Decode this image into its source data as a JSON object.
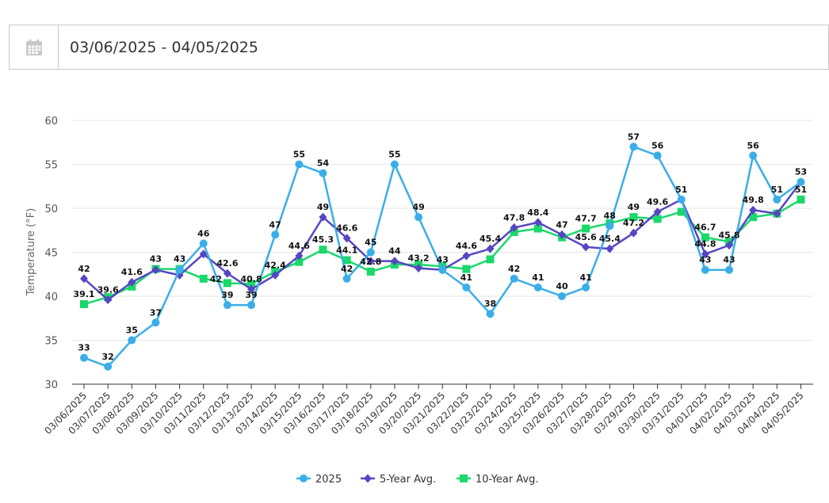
{
  "date_range": {
    "value": "03/06/2025 - 04/05/2025"
  },
  "colors": {
    "series_2025": "#3aaee8",
    "series_5yr": "#5646c2",
    "series_10yr": "#1ad86a",
    "grid": "#e6e6e6",
    "axis": "#333333"
  },
  "icons": {
    "calendar": "calendar-icon"
  },
  "chart_data": {
    "type": "line",
    "title": "",
    "xlabel": "",
    "ylabel": "Temperature (°F)",
    "ylim": [
      30,
      60
    ],
    "yticks": [
      30,
      35,
      40,
      45,
      50,
      55,
      60
    ],
    "grid": true,
    "legend_position": "bottom-center",
    "categories": [
      "03/06/2025",
      "03/07/2025",
      "03/08/2025",
      "03/09/2025",
      "03/10/2025",
      "03/11/2025",
      "03/12/2025",
      "03/13/2025",
      "03/14/2025",
      "03/15/2025",
      "03/16/2025",
      "03/17/2025",
      "03/18/2025",
      "03/19/2025",
      "03/20/2025",
      "03/21/2025",
      "03/22/2025",
      "03/23/2025",
      "03/24/2025",
      "03/25/2025",
      "03/26/2025",
      "03/27/2025",
      "03/28/2025",
      "03/29/2025",
      "03/30/2025",
      "03/31/2025",
      "04/01/2025",
      "04/02/2025",
      "04/03/2025",
      "04/04/2025",
      "04/05/2025"
    ],
    "series": [
      {
        "name": "2025",
        "marker": "circle",
        "color": "#3aaee8",
        "values": [
          33,
          32,
          35,
          37,
          43,
          46,
          39,
          39,
          47,
          55,
          54,
          42,
          45,
          55,
          49,
          43,
          41,
          38,
          42,
          41,
          40,
          41,
          48,
          57,
          56,
          51,
          43,
          43,
          56,
          51,
          53
        ]
      },
      {
        "name": "5-Year Avg.",
        "marker": "diamond",
        "color": "#5646c2",
        "values": [
          42,
          39.6,
          41.6,
          43,
          42.4,
          44.8,
          42.6,
          40.8,
          42.4,
          44.6,
          49,
          46.6,
          44,
          44,
          43.2,
          43,
          44.6,
          45.4,
          47.8,
          48.4,
          47,
          45.6,
          45.4,
          47.2,
          49.6,
          51,
          44.8,
          45.8,
          49.8,
          49.4,
          53
        ]
      },
      {
        "name": "10-Year Avg.",
        "marker": "square",
        "color": "#1ad86a",
        "values": [
          39.1,
          39.9,
          41.1,
          43.1,
          43.1,
          42,
          41.5,
          41.4,
          42.8,
          43.9,
          45.3,
          44.1,
          42.8,
          43.6,
          43.6,
          43.4,
          43.1,
          44.2,
          47.3,
          47.7,
          46.7,
          47.7,
          48.3,
          49,
          48.8,
          49.6,
          46.7,
          46.2,
          49,
          49.4,
          51
        ]
      }
    ],
    "data_labels": [
      {
        "text": "42",
        "series": 1,
        "index": 0,
        "pos": "above"
      },
      {
        "text": "33",
        "series": 0,
        "index": 0,
        "pos": "above"
      },
      {
        "text": "39.1",
        "series": 2,
        "index": 0,
        "pos": "above"
      },
      {
        "text": "39.6",
        "series": 1,
        "index": 1,
        "pos": "above"
      },
      {
        "text": "32",
        "series": 0,
        "index": 1,
        "pos": "above"
      },
      {
        "text": "41.6",
        "series": 1,
        "index": 2,
        "pos": "above"
      },
      {
        "text": "35",
        "series": 0,
        "index": 2,
        "pos": "above"
      },
      {
        "text": "43",
        "series": 2,
        "index": 3,
        "pos": "above"
      },
      {
        "text": "37",
        "series": 0,
        "index": 3,
        "pos": "above"
      },
      {
        "text": "43",
        "series": 2,
        "index": 4,
        "pos": "above"
      },
      {
        "text": "46",
        "series": 0,
        "index": 5,
        "pos": "above"
      },
      {
        "text": "42",
        "series": 2,
        "index": 5,
        "pos": "right"
      },
      {
        "text": "42.6",
        "series": 1,
        "index": 6,
        "pos": "above"
      },
      {
        "text": "39",
        "series": 0,
        "index": 6,
        "pos": "above"
      },
      {
        "text": "40.8",
        "series": 1,
        "index": 7,
        "pos": "above"
      },
      {
        "text": "39",
        "series": 0,
        "index": 7,
        "pos": "above"
      },
      {
        "text": "47",
        "series": 0,
        "index": 8,
        "pos": "above"
      },
      {
        "text": "42.4",
        "series": 1,
        "index": 8,
        "pos": "above"
      },
      {
        "text": "55",
        "series": 0,
        "index": 9,
        "pos": "above"
      },
      {
        "text": "44.6",
        "series": 1,
        "index": 9,
        "pos": "above"
      },
      {
        "text": "54",
        "series": 0,
        "index": 10,
        "pos": "above"
      },
      {
        "text": "49",
        "series": 1,
        "index": 10,
        "pos": "above"
      },
      {
        "text": "45.3",
        "series": 2,
        "index": 10,
        "pos": "above"
      },
      {
        "text": "46.6",
        "series": 1,
        "index": 11,
        "pos": "above"
      },
      {
        "text": "44.1",
        "series": 2,
        "index": 11,
        "pos": "above"
      },
      {
        "text": "42",
        "series": 0,
        "index": 11,
        "pos": "above"
      },
      {
        "text": "45",
        "series": 0,
        "index": 12,
        "pos": "above"
      },
      {
        "text": "42.8",
        "series": 2,
        "index": 12,
        "pos": "above"
      },
      {
        "text": "55",
        "series": 0,
        "index": 13,
        "pos": "above"
      },
      {
        "text": "44",
        "series": 1,
        "index": 13,
        "pos": "above"
      },
      {
        "text": "49",
        "series": 0,
        "index": 14,
        "pos": "above"
      },
      {
        "text": "43.2",
        "series": 1,
        "index": 14,
        "pos": "above"
      },
      {
        "text": "43",
        "series": 0,
        "index": 15,
        "pos": "above"
      },
      {
        "text": "44.6",
        "series": 1,
        "index": 16,
        "pos": "above"
      },
      {
        "text": "41",
        "series": 0,
        "index": 16,
        "pos": "above"
      },
      {
        "text": "45.4",
        "series": 1,
        "index": 17,
        "pos": "above"
      },
      {
        "text": "38",
        "series": 0,
        "index": 17,
        "pos": "above"
      },
      {
        "text": "47.8",
        "series": 1,
        "index": 18,
        "pos": "above"
      },
      {
        "text": "42",
        "series": 0,
        "index": 18,
        "pos": "above"
      },
      {
        "text": "48.4",
        "series": 1,
        "index": 19,
        "pos": "above"
      },
      {
        "text": "41",
        "series": 0,
        "index": 19,
        "pos": "above"
      },
      {
        "text": "47",
        "series": 1,
        "index": 20,
        "pos": "above"
      },
      {
        "text": "40",
        "series": 0,
        "index": 20,
        "pos": "above"
      },
      {
        "text": "47.7",
        "series": 2,
        "index": 21,
        "pos": "above"
      },
      {
        "text": "45.6",
        "series": 1,
        "index": 21,
        "pos": "above"
      },
      {
        "text": "41",
        "series": 0,
        "index": 21,
        "pos": "above"
      },
      {
        "text": "48",
        "series": 0,
        "index": 22,
        "pos": "above"
      },
      {
        "text": "45.4",
        "series": 1,
        "index": 22,
        "pos": "above"
      },
      {
        "text": "57",
        "series": 0,
        "index": 23,
        "pos": "above"
      },
      {
        "text": "49",
        "series": 2,
        "index": 23,
        "pos": "above"
      },
      {
        "text": "47.2",
        "series": 1,
        "index": 23,
        "pos": "above"
      },
      {
        "text": "56",
        "series": 0,
        "index": 24,
        "pos": "above"
      },
      {
        "text": "49.6",
        "series": 1,
        "index": 24,
        "pos": "above"
      },
      {
        "text": "51",
        "series": 0,
        "index": 25,
        "pos": "above"
      },
      {
        "text": "46.7",
        "series": 2,
        "index": 26,
        "pos": "above"
      },
      {
        "text": "44.8",
        "series": 1,
        "index": 26,
        "pos": "above"
      },
      {
        "text": "43",
        "series": 0,
        "index": 26,
        "pos": "above"
      },
      {
        "text": "45.8",
        "series": 1,
        "index": 27,
        "pos": "above"
      },
      {
        "text": "43",
        "series": 0,
        "index": 27,
        "pos": "above"
      },
      {
        "text": "56",
        "series": 0,
        "index": 28,
        "pos": "above"
      },
      {
        "text": "49.8",
        "series": 1,
        "index": 28,
        "pos": "above"
      },
      {
        "text": "51",
        "series": 0,
        "index": 29,
        "pos": "above"
      },
      {
        "text": "53",
        "series": 0,
        "index": 30,
        "pos": "above"
      },
      {
        "text": "51",
        "series": 2,
        "index": 30,
        "pos": "above"
      }
    ]
  }
}
